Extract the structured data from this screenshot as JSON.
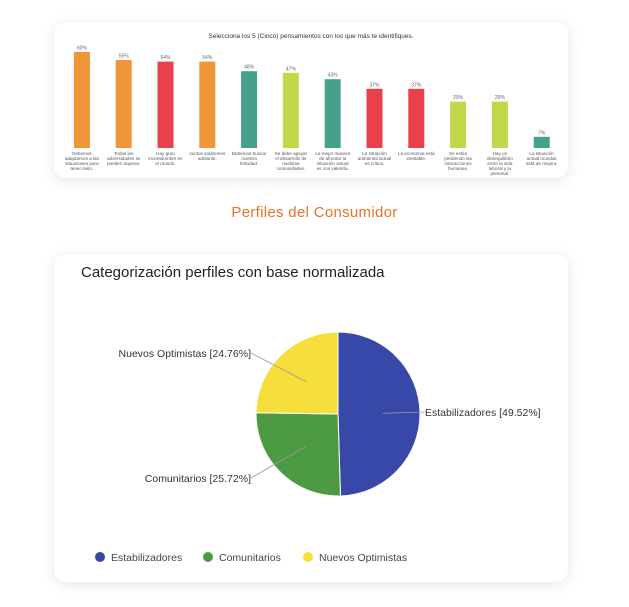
{
  "section_heading": "Perfiles del Consumidor",
  "chart_data": [
    {
      "type": "bar",
      "title": "Selecciona los 5 (Cinco) pensamientos con los que más te identifiques.",
      "categories": [
        "Debemos adaptarnos a las situaciones para tener éxito.",
        "Todas las adversidades se pueden superar.",
        "Hay gran incertidumbre en el mundo.",
        "Juntos saldremos adelante.",
        "Debemos buscar nuestra felicidad.",
        "Se debe apoyar el desarrollo de nuestras comunidades.",
        "La mejor manera de afrontar la situación actual es con valentía.",
        "La situación ambiental actual es crítica.",
        "La economía está inestable.",
        "Se están perdiendo las interacciones humanas.",
        "Hay un desequilibrio entre la vida laboral y la personal.",
        "La situación actual mundial está de mejora."
      ],
      "values": [
        60,
        55,
        54,
        54,
        48,
        47,
        43,
        37,
        37,
        29,
        29,
        7
      ],
      "value_labels": [
        "60%",
        "55%",
        "54%",
        "54%",
        "48%",
        "47%",
        "43%",
        "37%",
        "37%",
        "29%",
        "29%",
        "7%"
      ],
      "colors": [
        "#f0953a",
        "#f0953a",
        "#e8414b",
        "#f0953a",
        "#45a08c",
        "#c1d84a",
        "#45a08c",
        "#e8414b",
        "#e8414b",
        "#c1d84a",
        "#c1d84a",
        "#45a08c"
      ],
      "ylim": [
        0,
        60
      ],
      "grid": false
    },
    {
      "type": "pie",
      "title": "Categorización perfiles con base normalizada",
      "series": [
        {
          "name": "Estabilizadores",
          "value": 49.52,
          "label": "Estabilizadores [49.52%]",
          "color": "#3748a8"
        },
        {
          "name": "Comunitarios",
          "value": 25.72,
          "label": "Comunitarios [25.72%]",
          "color": "#4d9a45"
        },
        {
          "name": "Nuevos Optimistas",
          "value": 24.76,
          "label": "Nuevos Optimistas [24.76%]",
          "color": "#f7df3b"
        }
      ],
      "legend_position": "bottom-left"
    }
  ]
}
